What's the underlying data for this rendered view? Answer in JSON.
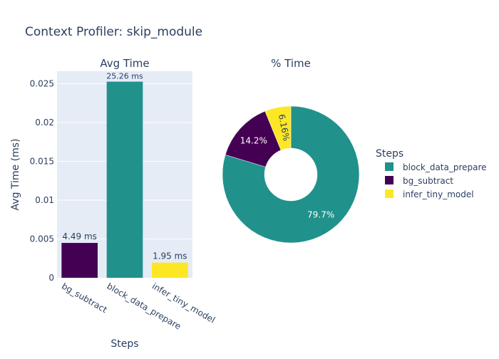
{
  "title": "Context Profiler: skip_module",
  "colors": {
    "plot_bg": "#e5ecf6",
    "grid": "#ffffff",
    "text": "#2a3f5f",
    "bg_subtract": "#440154",
    "block_data_prepare": "#21918c",
    "infer_tiny_model": "#fde725"
  },
  "chart_data": [
    {
      "type": "bar",
      "title": "Avg Time",
      "xlabel": "Steps",
      "ylabel": "Avg Time (ms)",
      "categories": [
        "bg_subtract",
        "block_data_prepare",
        "infer_tiny_model"
      ],
      "values": [
        0.00449,
        0.02526,
        0.00195
      ],
      "data_labels": [
        "4.49 ms",
        "25.26 ms",
        "1.95 ms"
      ],
      "yticks": [
        0,
        0.005,
        0.01,
        0.015,
        0.02,
        0.025
      ],
      "ytick_labels": [
        "0",
        "0.005",
        "0.01",
        "0.015",
        "0.02",
        "0.025"
      ],
      "ylim": [
        0,
        0.0266
      ],
      "grid": true
    },
    {
      "type": "pie",
      "title": "% Time",
      "hole": true,
      "labels": [
        "block_data_prepare",
        "bg_subtract",
        "infer_tiny_model"
      ],
      "values": [
        79.7,
        14.2,
        6.16
      ],
      "data_labels": [
        "79.7%",
        "14.2%",
        "6.16%"
      ],
      "legend_title": "Steps",
      "legend_placement": "right"
    }
  ]
}
